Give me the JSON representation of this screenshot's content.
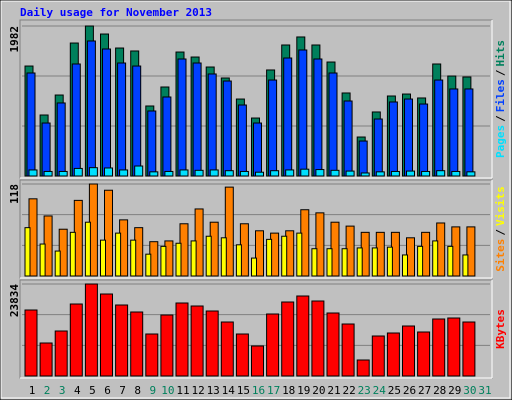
{
  "title": "Daily usage for November 2013",
  "chart_data": [
    {
      "type": "bar",
      "ylim": [
        0,
        1982
      ],
      "yticks": [
        1982
      ],
      "legend_separator": "/",
      "series": [
        {
          "name": "Pages",
          "color": "#00e0ff",
          "values": [
            80,
            60,
            60,
            100,
            110,
            106,
            80,
            132,
            55,
            60,
            80,
            75,
            80,
            70,
            60,
            50,
            70,
            80,
            90,
            85,
            75,
            65,
            40,
            55,
            60,
            65,
            60,
            70,
            60,
            55,
            null
          ]
        },
        {
          "name": "Files",
          "color": "#0040ff",
          "values": [
            1361,
            700,
            965,
            1480,
            1784,
            1678,
            1493,
            1453,
            859,
            1044,
            1546,
            1493,
            1348,
            1255,
            938,
            700,
            1268,
            1559,
            1665,
            1546,
            1361,
            991,
            462,
            753,
            978,
            1017,
            951,
            1268,
            1150,
            1150,
            null
          ]
        },
        {
          "name": "Hits",
          "color": "#00805c",
          "values": [
            1453,
            806,
            1070,
            1757,
            1982,
            1876,
            1691,
            1652,
            925,
            1176,
            1638,
            1572,
            1440,
            1295,
            1017,
            766,
            1401,
            1731,
            1837,
            1731,
            1506,
            1097,
            515,
            846,
            1057,
            1083,
            1031,
            1480,
            1321,
            1308,
            null
          ]
        }
      ]
    },
    {
      "type": "bar",
      "ylim": [
        0,
        118
      ],
      "yticks": [
        118
      ],
      "legend_separator": "/",
      "series": [
        {
          "name": "Sites",
          "color": "#ff8000",
          "values": [
            99,
            77,
            60,
            97,
            118,
            110,
            72,
            62,
            44,
            45,
            67,
            86,
            69,
            114,
            67,
            58,
            55,
            58,
            85,
            81,
            69,
            64,
            56,
            56,
            56,
            49,
            56,
            68,
            63,
            63,
            null
          ]
        },
        {
          "name": "Visits",
          "color": "#ffff00",
          "values": [
            62,
            41,
            32,
            56,
            69,
            46,
            55,
            46,
            28,
            38,
            42,
            45,
            51,
            49,
            40,
            23,
            47,
            51,
            55,
            35,
            35,
            35,
            36,
            36,
            37,
            27,
            38,
            45,
            38,
            27,
            null
          ]
        }
      ]
    },
    {
      "type": "bar",
      "ylim": [
        0,
        23834
      ],
      "yticks": [
        23834
      ],
      "series": [
        {
          "name": "KBytes",
          "color": "#ff0000",
          "values": [
            17098,
            8549,
            11658,
            18653,
            23834,
            21243,
            18394,
            16580,
            10881,
            15803,
            18912,
            18135,
            16839,
            13990,
            10881,
            7772,
            16062,
            19171,
            20725,
            19430,
            16321,
            13471,
            4145,
            10363,
            11140,
            12953,
            11399,
            14767,
            15026,
            13990,
            null
          ]
        }
      ],
      "categories": [
        "1",
        "2",
        "3",
        "4",
        "5",
        "6",
        "7",
        "8",
        "9",
        "10",
        "11",
        "12",
        "13",
        "14",
        "15",
        "16",
        "17",
        "18",
        "19",
        "20",
        "21",
        "22",
        "23",
        "24",
        "25",
        "26",
        "27",
        "28",
        "29",
        "30",
        "31"
      ],
      "category_colors": [
        "#000000",
        "#00805c",
        "#00805c",
        "#000000",
        "#000000",
        "#000000",
        "#000000",
        "#000000",
        "#00805c",
        "#00805c",
        "#000000",
        "#000000",
        "#000000",
        "#000000",
        "#000000",
        "#00805c",
        "#00805c",
        "#000000",
        "#000000",
        "#000000",
        "#000000",
        "#000000",
        "#00805c",
        "#00805c",
        "#000000",
        "#000000",
        "#000000",
        "#000000",
        "#000000",
        "#00805c",
        "#00805c"
      ]
    }
  ]
}
